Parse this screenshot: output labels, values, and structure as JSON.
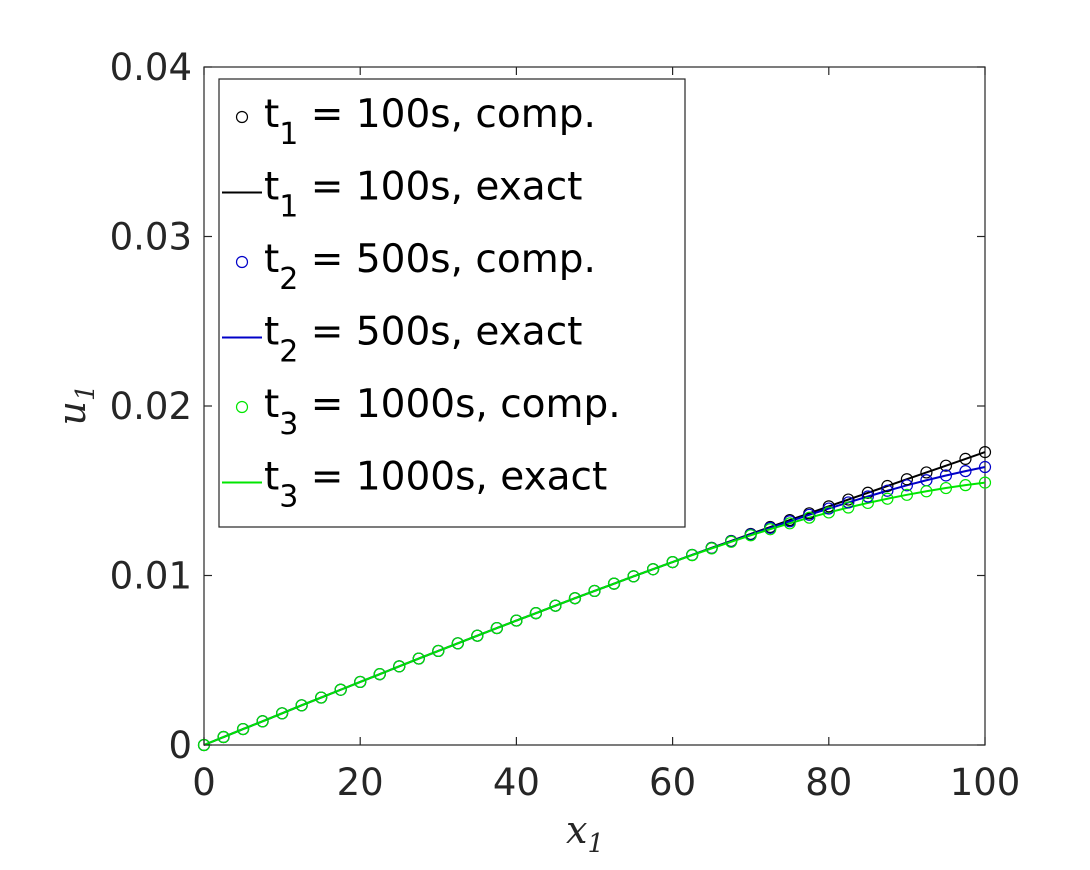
{
  "chart_data": {
    "type": "line",
    "xlabel": "x",
    "xlabel_sub": "1",
    "ylabel": "u",
    "ylabel_sub": "1",
    "xlim": [
      0,
      100
    ],
    "ylim": [
      0,
      0.04
    ],
    "xticks": [
      0,
      20,
      40,
      60,
      80,
      100
    ],
    "yticks": [
      0,
      0.01,
      0.02,
      0.03,
      0.04
    ],
    "xtick_labels": [
      "0",
      "20",
      "40",
      "60",
      "80",
      "100"
    ],
    "ytick_labels": [
      "0",
      "0.01",
      "0.02",
      "0.03",
      "0.04"
    ],
    "grid": false,
    "legend_position": "top-left",
    "x": [
      0,
      2.5,
      5,
      7.5,
      10,
      12.5,
      15,
      17.5,
      20,
      22.5,
      25,
      27.5,
      30,
      32.5,
      35,
      37.5,
      40,
      42.5,
      45,
      47.5,
      50,
      52.5,
      55,
      57.5,
      60,
      62.5,
      65,
      67.5,
      70,
      72.5,
      75,
      77.5,
      80,
      82.5,
      85,
      87.5,
      90,
      92.5,
      95,
      97.5,
      100
    ],
    "series": [
      {
        "name": "t1 = 100s, comp.",
        "label_main": "t",
        "label_sub": "1",
        "label_rest": " = 100s, comp.",
        "style": "markers",
        "color": "#000000",
        "values": [
          0,
          0.00047,
          0.00094,
          0.0014,
          0.00187,
          0.00234,
          0.0028,
          0.00326,
          0.00372,
          0.00418,
          0.00464,
          0.0051,
          0.00555,
          0.006,
          0.00645,
          0.0069,
          0.00734,
          0.00778,
          0.00822,
          0.00866,
          0.00909,
          0.00952,
          0.00995,
          0.01037,
          0.01079,
          0.01121,
          0.01163,
          0.01204,
          0.01245,
          0.01286,
          0.01327,
          0.01367,
          0.01408,
          0.01448,
          0.01488,
          0.01528,
          0.01568,
          0.01608,
          0.01648,
          0.01688,
          0.01728
        ]
      },
      {
        "name": "t1 = 100s, exact",
        "label_main": "t",
        "label_sub": "1",
        "label_rest": " = 100s, exact",
        "style": "line",
        "color": "#000000",
        "values": [
          0,
          0.00047,
          0.00094,
          0.0014,
          0.00187,
          0.00234,
          0.0028,
          0.00326,
          0.00372,
          0.00418,
          0.00464,
          0.0051,
          0.00555,
          0.006,
          0.00645,
          0.0069,
          0.00734,
          0.00778,
          0.00822,
          0.00866,
          0.00909,
          0.00952,
          0.00995,
          0.01037,
          0.01079,
          0.01121,
          0.01163,
          0.01204,
          0.01245,
          0.01286,
          0.01327,
          0.01367,
          0.01408,
          0.01448,
          0.01488,
          0.01528,
          0.01568,
          0.01608,
          0.01648,
          0.01688,
          0.01728
        ]
      },
      {
        "name": "t2 = 500s, comp.",
        "label_main": "t",
        "label_sub": "2",
        "label_rest": " = 500s, comp.",
        "style": "markers",
        "color": "#0000c8",
        "values": [
          0,
          0.00047,
          0.00094,
          0.0014,
          0.00187,
          0.00234,
          0.0028,
          0.00326,
          0.00372,
          0.00418,
          0.00464,
          0.0051,
          0.00555,
          0.006,
          0.00645,
          0.0069,
          0.00734,
          0.00778,
          0.00822,
          0.00866,
          0.00909,
          0.00952,
          0.00995,
          0.01037,
          0.01079,
          0.01121,
          0.01162,
          0.01202,
          0.01242,
          0.01281,
          0.0132,
          0.01358,
          0.01395,
          0.01431,
          0.01466,
          0.015,
          0.01532,
          0.01562,
          0.0159,
          0.01616,
          0.0164
        ]
      },
      {
        "name": "t2 = 500s, exact",
        "label_main": "t",
        "label_sub": "2",
        "label_rest": " = 500s, exact",
        "style": "line",
        "color": "#0000c8",
        "values": [
          0,
          0.00047,
          0.00094,
          0.0014,
          0.00187,
          0.00234,
          0.0028,
          0.00326,
          0.00372,
          0.00418,
          0.00464,
          0.0051,
          0.00555,
          0.006,
          0.00645,
          0.0069,
          0.00734,
          0.00778,
          0.00822,
          0.00866,
          0.00909,
          0.00952,
          0.00995,
          0.01037,
          0.01079,
          0.01121,
          0.01162,
          0.01202,
          0.01242,
          0.01281,
          0.0132,
          0.01358,
          0.01395,
          0.01431,
          0.01466,
          0.015,
          0.01532,
          0.01562,
          0.0159,
          0.01616,
          0.0164
        ]
      },
      {
        "name": "t3 = 1000s, comp.",
        "label_main": "t",
        "label_sub": "3",
        "label_rest": " = 1000s, comp.",
        "style": "markers",
        "color": "#00e600",
        "values": [
          0,
          0.00047,
          0.00094,
          0.0014,
          0.00187,
          0.00234,
          0.0028,
          0.00326,
          0.00372,
          0.00418,
          0.00464,
          0.0051,
          0.00555,
          0.006,
          0.00645,
          0.0069,
          0.00734,
          0.00778,
          0.00822,
          0.00866,
          0.00909,
          0.00952,
          0.00995,
          0.01037,
          0.01079,
          0.0112,
          0.0116,
          0.01199,
          0.01237,
          0.01273,
          0.01308,
          0.01341,
          0.01372,
          0.01401,
          0.01428,
          0.01453,
          0.01476,
          0.01497,
          0.01516,
          0.01533,
          0.01548
        ]
      },
      {
        "name": "t3 = 1000s, exact",
        "label_main": "t",
        "label_sub": "3",
        "label_rest": " = 1000s, exact",
        "style": "line",
        "color": "#00e600",
        "values": [
          0,
          0.00047,
          0.00094,
          0.0014,
          0.00187,
          0.00234,
          0.0028,
          0.00326,
          0.00372,
          0.00418,
          0.00464,
          0.0051,
          0.00555,
          0.006,
          0.00645,
          0.0069,
          0.00734,
          0.00778,
          0.00822,
          0.00866,
          0.00909,
          0.00952,
          0.00995,
          0.01037,
          0.01079,
          0.0112,
          0.0116,
          0.01199,
          0.01237,
          0.01273,
          0.01308,
          0.01341,
          0.01372,
          0.01401,
          0.01428,
          0.01453,
          0.01476,
          0.01497,
          0.01516,
          0.01533,
          0.01548
        ]
      }
    ]
  }
}
